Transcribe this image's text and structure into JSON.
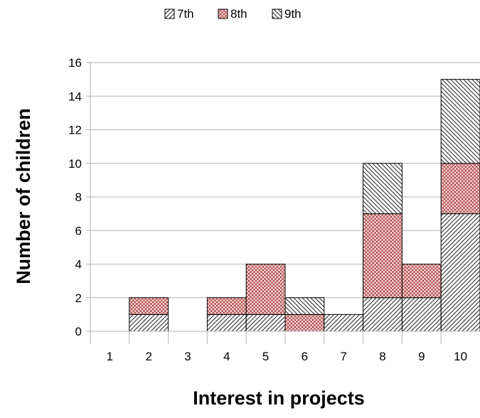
{
  "chart_data": {
    "type": "bar",
    "stacked": true,
    "categories": [
      "1",
      "2",
      "3",
      "4",
      "5",
      "6",
      "7",
      "8",
      "9",
      "10"
    ],
    "series": [
      {
        "name": "7th",
        "values": [
          0,
          1,
          0,
          1,
          1,
          0,
          1,
          2,
          2,
          7
        ],
        "pattern": "hatch-forward",
        "color": "#ffffff"
      },
      {
        "name": "8th",
        "values": [
          0,
          1,
          0,
          1,
          3,
          1,
          0,
          5,
          2,
          3
        ],
        "pattern": "crosshatch",
        "color": "#b74a4a"
      },
      {
        "name": "9th",
        "values": [
          0,
          0,
          0,
          0,
          0,
          1,
          0,
          3,
          0,
          5
        ],
        "pattern": "hatch-backward",
        "color": "#ffffff"
      }
    ],
    "xlabel": "Interest in projects",
    "ylabel": "Number of children",
    "ylim": [
      0,
      16
    ],
    "yticks": [
      0,
      2,
      4,
      6,
      8,
      10,
      12,
      14,
      16
    ],
    "grid": "horizontal",
    "legend": "top-center"
  }
}
